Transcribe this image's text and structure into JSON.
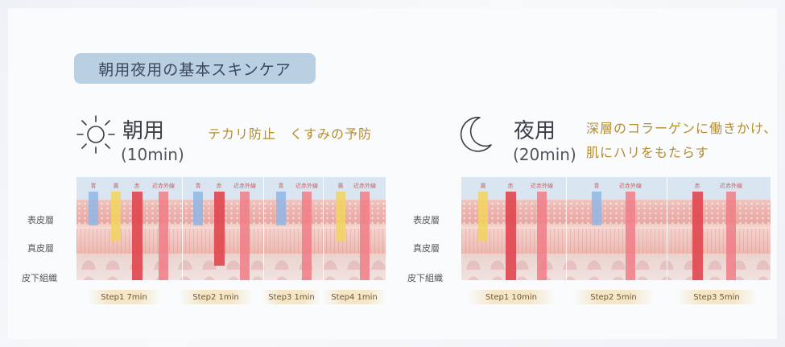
{
  "heading": "朝用夜用の基本スキンケア",
  "morning": {
    "label": "朝用",
    "duration": "(10min)",
    "effect": "テカリ防止　くすみの予防",
    "steps": [
      "Step1  7min",
      "Step2  1min",
      "Step3  1min",
      "Step4  1min"
    ],
    "beam_labels": [
      "青",
      "黄",
      "赤",
      "近赤外線",
      "青",
      "赤",
      "近赤外線",
      "青",
      "近赤外線",
      "黄",
      "近赤外線"
    ]
  },
  "night": {
    "label": "夜用",
    "duration": "(20min)",
    "effect_line1": "深層のコラーゲンに働きかけ、",
    "effect_line2": "肌にハリをもたらす",
    "steps": [
      "Step1  10min",
      "Step2  5min",
      "Step3  5min"
    ],
    "beam_labels": [
      "黄",
      "赤",
      "近赤外線",
      "青",
      "近赤外線",
      "赤",
      "近赤外線"
    ]
  },
  "layers": [
    "表皮層",
    "真皮層",
    "皮下組織"
  ],
  "colors": {
    "blue_light": "#8fb6e6",
    "yellow_light": "#f1d35e",
    "red_light": "#e0464e",
    "near_infrared": "#f07d86",
    "accent_gold": "#b48c2e",
    "pill_bg": "#b9cfe2"
  }
}
